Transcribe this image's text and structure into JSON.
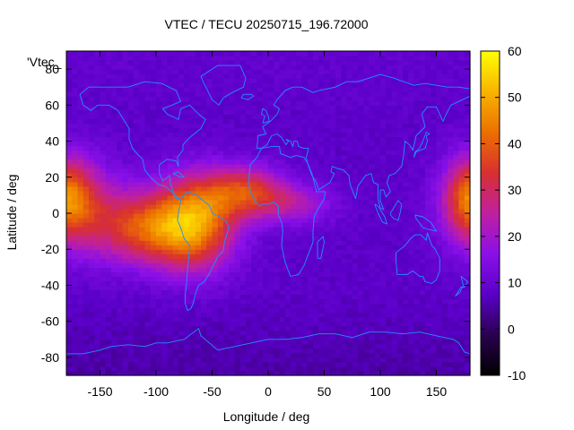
{
  "chart_data": {
    "type": "heatmap",
    "title": "VTEC / TECU 20250715_196.72000",
    "xlabel": "Longitude / deg",
    "ylabel": "Latitude / deg",
    "key_label": "'Vtec_",
    "xlim": [
      -180,
      180
    ],
    "ylim": [
      -90,
      90
    ],
    "x_ticks": [
      -150,
      -100,
      -50,
      0,
      50,
      100,
      150
    ],
    "y_ticks": [
      -80,
      -60,
      -40,
      -20,
      0,
      20,
      40,
      60,
      80
    ],
    "colorbar": {
      "range": [
        -10,
        60
      ],
      "ticks": [
        -10,
        0,
        10,
        20,
        30,
        40,
        50,
        60
      ],
      "palette": [
        "#000000",
        "#2a0050",
        "#5a00c8",
        "#8a10e8",
        "#c020a0",
        "#d83030",
        "#ec7000",
        "#f8b400",
        "#ffff00"
      ]
    },
    "field": {
      "background_value": 8,
      "south_value": 5,
      "north_value": 9,
      "enhancements": [
        {
          "lon": -110,
          "lat": -8,
          "amplitude": 28,
          "sigma_lon": 30,
          "sigma_lat": 14
        },
        {
          "lon": -65,
          "lat": -5,
          "amplitude": 36,
          "sigma_lon": 25,
          "sigma_lat": 18
        },
        {
          "lon": -20,
          "lat": 12,
          "amplitude": 26,
          "sigma_lon": 25,
          "sigma_lat": 10
        },
        {
          "lon": 25,
          "lat": 5,
          "amplitude": 12,
          "sigma_lon": 25,
          "sigma_lat": 8
        },
        {
          "lon": -170,
          "lat": 5,
          "amplitude": 20,
          "sigma_lon": 25,
          "sigma_lat": 18
        },
        {
          "lon": 180,
          "lat": 10,
          "amplitude": 20,
          "sigma_lon": 15,
          "sigma_lat": 15
        }
      ]
    },
    "coastline_color": "#1e90ff"
  }
}
